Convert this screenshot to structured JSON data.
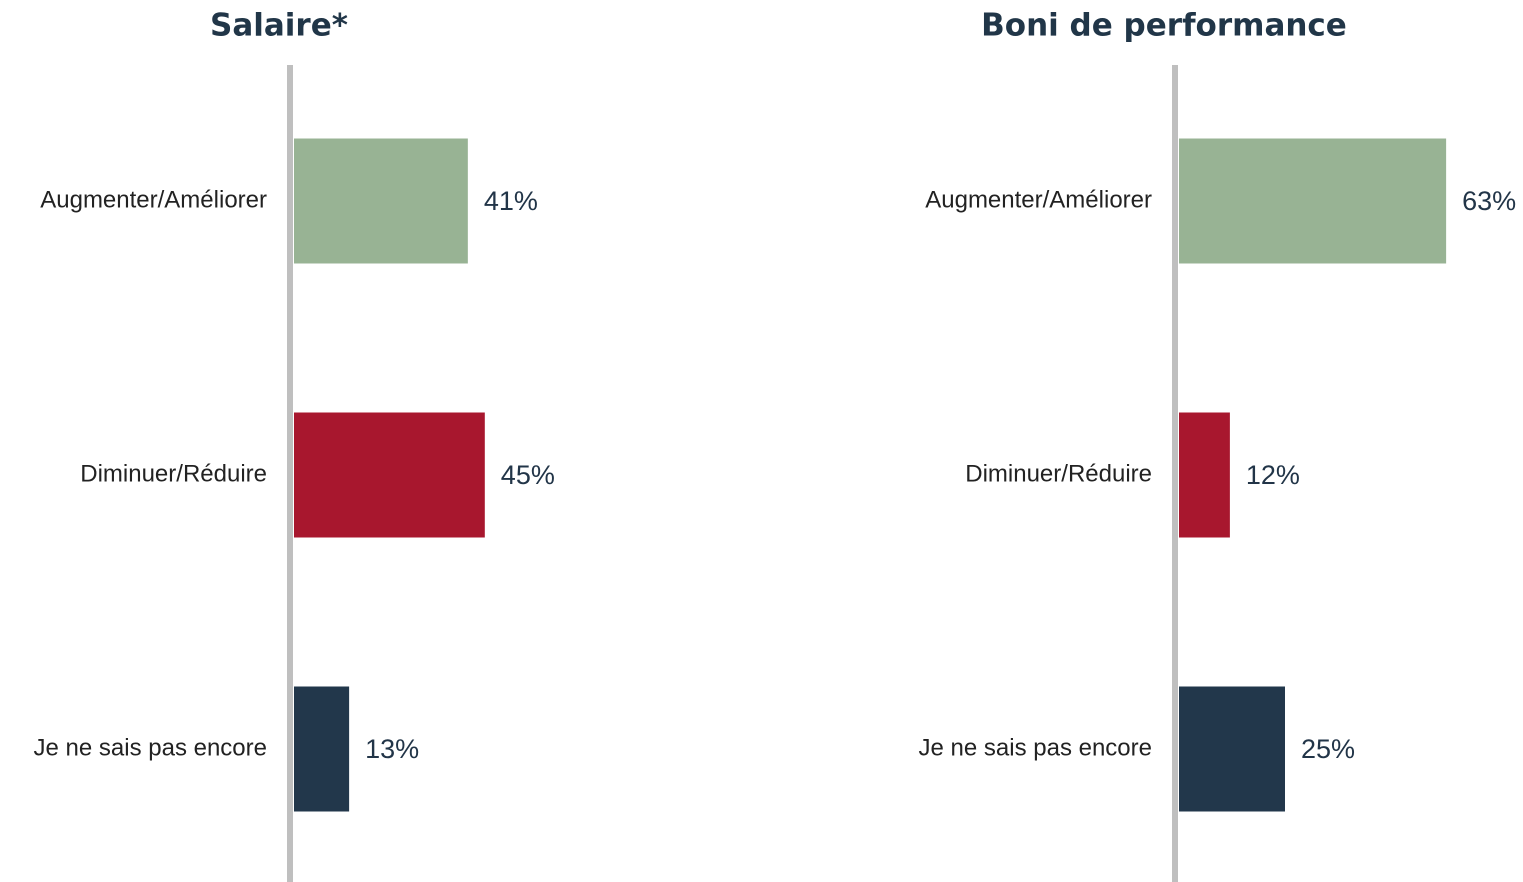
{
  "chart_data": [
    {
      "type": "bar",
      "title": "Salaire*",
      "categories": [
        "Augmenter/Améliorer",
        "Diminuer/Réduire",
        "Je ne sais pas encore"
      ],
      "values": [
        41,
        45,
        13
      ],
      "value_labels": [
        "41%",
        "45%",
        "13%"
      ],
      "colors": [
        "#98b394",
        "#a8172e",
        "#22374b"
      ]
    },
    {
      "type": "bar",
      "title": "Boni de performance",
      "categories": [
        "Augmenter/Améliorer",
        "Diminuer/Réduire",
        "Je ne sais pas encore"
      ],
      "values": [
        63,
        12,
        25
      ],
      "value_labels": [
        "63%",
        "12%",
        "25%"
      ],
      "colors": [
        "#98b394",
        "#a8172e",
        "#22374b"
      ]
    }
  ]
}
